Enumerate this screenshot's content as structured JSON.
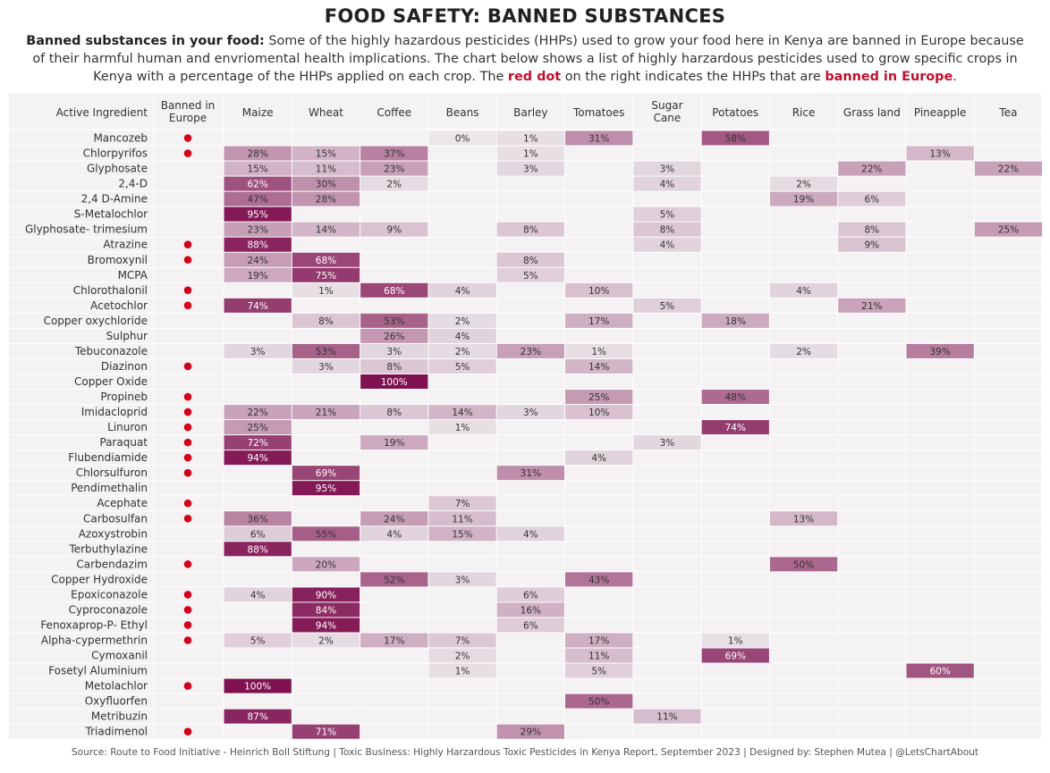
{
  "header": {
    "title": "FOOD SAFETY: BANNED SUBSTANCES",
    "subtitle_lead": "Banned substances in your food:",
    "subtitle_body_1": " Some of the highly hazardous pesticides (HHPs) used to grow your food here in Kenya are banned in Europe because of their harmful human and envriomental health implications. The chart below shows a list of highly harzardous pesticides used to grow specific crops in Kenya with a percentage of the HHPs applied on each crop. The ",
    "subtitle_red_1": "red dot",
    "subtitle_body_2": " on the right indicates the HHPs that are ",
    "subtitle_red_2": "banned in Europe",
    "subtitle_end": "."
  },
  "footer": {
    "source": "Source: Route to Food Initiative - Heinrich Boll Stiftung  |  Toxic Business: Highly Harzardous Toxic Pesticides in Kenya Report, September 2023  |  Designed by: Stephen Mutea  |  @LetsChartAbout"
  },
  "colors": {
    "banned_dot": "#d0021b",
    "cell_background": "#f4f2f3",
    "scale_low": "#ebe6ea",
    "scale_high": "#7f1150",
    "text_dark": "#333333",
    "text_light": "#ffffff"
  },
  "chart_data": {
    "type": "heatmap",
    "title": "FOOD SAFETY: BANNED SUBSTANCES",
    "row_header": "Active Ingredient",
    "banned_header": [
      "Banned in",
      "Europe"
    ],
    "columns": [
      [
        "Maize"
      ],
      [
        "Wheat"
      ],
      [
        "Coffee"
      ],
      [
        "Beans"
      ],
      [
        "Barley"
      ],
      [
        "Tomatoes"
      ],
      [
        "Sugar",
        "Cane"
      ],
      [
        "Potatoes"
      ],
      [
        "Rice"
      ],
      [
        "Grass land"
      ],
      [
        "Pineapple"
      ],
      [
        "Tea"
      ]
    ],
    "value_suffix": "%",
    "rows": [
      {
        "name": "Mancozeb",
        "banned": true,
        "values": [
          null,
          null,
          null,
          0,
          1,
          31,
          null,
          58,
          null,
          null,
          null,
          null
        ]
      },
      {
        "name": "Chlorpyrifos",
        "banned": true,
        "values": [
          28,
          15,
          37,
          null,
          1,
          null,
          null,
          null,
          null,
          null,
          13,
          null
        ]
      },
      {
        "name": "Glyphosate",
        "banned": false,
        "values": [
          15,
          11,
          23,
          null,
          3,
          null,
          3,
          null,
          null,
          22,
          null,
          22
        ]
      },
      {
        "name": "2,4-D",
        "banned": false,
        "values": [
          62,
          30,
          2,
          null,
          null,
          null,
          4,
          null,
          2,
          null,
          null,
          null
        ]
      },
      {
        "name": "2,4 D-Amine",
        "banned": false,
        "values": [
          47,
          28,
          null,
          null,
          null,
          null,
          null,
          null,
          19,
          6,
          null,
          null
        ]
      },
      {
        "name": "S-Metalochlor",
        "banned": false,
        "values": [
          95,
          null,
          null,
          null,
          null,
          null,
          5,
          null,
          null,
          null,
          null,
          null
        ]
      },
      {
        "name": "Glyphosate- trimesium",
        "banned": false,
        "values": [
          23,
          14,
          9,
          null,
          8,
          null,
          8,
          null,
          null,
          8,
          null,
          25
        ]
      },
      {
        "name": "Atrazine",
        "banned": true,
        "values": [
          88,
          null,
          null,
          null,
          null,
          null,
          4,
          null,
          null,
          9,
          null,
          null
        ]
      },
      {
        "name": "Bromoxynil",
        "banned": true,
        "values": [
          24,
          68,
          null,
          null,
          8,
          null,
          null,
          null,
          null,
          null,
          null,
          null
        ]
      },
      {
        "name": "MCPA",
        "banned": false,
        "values": [
          19,
          75,
          null,
          null,
          5,
          null,
          null,
          null,
          null,
          null,
          null,
          null
        ]
      },
      {
        "name": "Chlorothalonil",
        "banned": true,
        "values": [
          null,
          1,
          68,
          4,
          null,
          10,
          null,
          null,
          4,
          null,
          null,
          null
        ]
      },
      {
        "name": "Acetochlor",
        "banned": true,
        "values": [
          74,
          null,
          null,
          null,
          null,
          null,
          5,
          null,
          null,
          21,
          null,
          null
        ]
      },
      {
        "name": "Copper oxychloride",
        "banned": false,
        "values": [
          null,
          8,
          53,
          2,
          null,
          17,
          null,
          18,
          null,
          null,
          null,
          null
        ]
      },
      {
        "name": "Sulphur",
        "banned": false,
        "values": [
          null,
          null,
          26,
          4,
          null,
          null,
          null,
          null,
          null,
          null,
          null,
          null
        ]
      },
      {
        "name": "Tebuconazole",
        "banned": false,
        "values": [
          3,
          53,
          3,
          2,
          23,
          1,
          null,
          null,
          2,
          null,
          39,
          null
        ]
      },
      {
        "name": "Diazinon",
        "banned": true,
        "values": [
          null,
          3,
          8,
          5,
          null,
          14,
          null,
          null,
          null,
          null,
          null,
          null
        ]
      },
      {
        "name": "Copper Oxide",
        "banned": false,
        "values": [
          null,
          null,
          100,
          null,
          null,
          null,
          null,
          null,
          null,
          null,
          null,
          null
        ]
      },
      {
        "name": "Propineb",
        "banned": true,
        "values": [
          null,
          null,
          null,
          null,
          null,
          25,
          null,
          48,
          null,
          null,
          null,
          null
        ]
      },
      {
        "name": "Imidacloprid",
        "banned": true,
        "values": [
          22,
          21,
          8,
          14,
          3,
          10,
          null,
          null,
          null,
          null,
          null,
          null
        ]
      },
      {
        "name": "Linuron",
        "banned": true,
        "values": [
          25,
          null,
          null,
          1,
          null,
          null,
          null,
          74,
          null,
          null,
          null,
          null
        ]
      },
      {
        "name": "Paraquat",
        "banned": true,
        "values": [
          72,
          null,
          19,
          null,
          null,
          null,
          3,
          null,
          null,
          null,
          null,
          null
        ]
      },
      {
        "name": "Flubendiamide",
        "banned": true,
        "values": [
          94,
          null,
          null,
          null,
          null,
          4,
          null,
          null,
          null,
          null,
          null,
          null
        ]
      },
      {
        "name": "Chlorsulfuron",
        "banned": true,
        "values": [
          null,
          69,
          null,
          null,
          31,
          null,
          null,
          null,
          null,
          null,
          null,
          null
        ]
      },
      {
        "name": "Pendimethalin",
        "banned": false,
        "values": [
          null,
          95,
          null,
          null,
          null,
          null,
          null,
          null,
          null,
          null,
          null,
          null
        ]
      },
      {
        "name": "Acephate",
        "banned": true,
        "values": [
          null,
          null,
          null,
          7,
          null,
          null,
          null,
          null,
          null,
          null,
          null,
          null
        ]
      },
      {
        "name": "Carbosulfan",
        "banned": true,
        "values": [
          36,
          null,
          24,
          11,
          null,
          null,
          null,
          null,
          13,
          null,
          null,
          null
        ]
      },
      {
        "name": "Azoxystrobin",
        "banned": false,
        "values": [
          6,
          55,
          4,
          15,
          4,
          null,
          null,
          null,
          null,
          null,
          null,
          null
        ]
      },
      {
        "name": "Terbuthylazine",
        "banned": false,
        "values": [
          88,
          null,
          null,
          null,
          null,
          null,
          null,
          null,
          null,
          null,
          null,
          null
        ]
      },
      {
        "name": "Carbendazim",
        "banned": true,
        "values": [
          null,
          20,
          null,
          null,
          null,
          null,
          null,
          null,
          50,
          null,
          null,
          null
        ]
      },
      {
        "name": "Copper Hydroxide",
        "banned": false,
        "values": [
          null,
          null,
          52,
          3,
          null,
          43,
          null,
          null,
          null,
          null,
          null,
          null
        ]
      },
      {
        "name": "Epoxiconazole",
        "banned": true,
        "values": [
          4,
          90,
          null,
          null,
          6,
          null,
          null,
          null,
          null,
          null,
          null,
          null
        ]
      },
      {
        "name": "Cyproconazole",
        "banned": true,
        "values": [
          null,
          84,
          null,
          null,
          16,
          null,
          null,
          null,
          null,
          null,
          null,
          null
        ]
      },
      {
        "name": "Fenoxaprop-P- Ethyl",
        "banned": true,
        "values": [
          null,
          94,
          null,
          null,
          6,
          null,
          null,
          null,
          null,
          null,
          null,
          null
        ]
      },
      {
        "name": "Alpha-cypermethrin",
        "banned": true,
        "values": [
          5,
          2,
          17,
          7,
          null,
          17,
          null,
          1,
          null,
          null,
          null,
          null
        ]
      },
      {
        "name": "Cymoxanil",
        "banned": false,
        "values": [
          null,
          null,
          null,
          2,
          null,
          11,
          null,
          69,
          null,
          null,
          null,
          null
        ]
      },
      {
        "name": "Fosetyl Aluminium",
        "banned": false,
        "values": [
          null,
          null,
          null,
          1,
          null,
          5,
          null,
          null,
          null,
          null,
          60,
          null
        ]
      },
      {
        "name": "Metolachlor",
        "banned": true,
        "values": [
          100,
          null,
          null,
          null,
          null,
          null,
          null,
          null,
          null,
          null,
          null,
          null
        ]
      },
      {
        "name": "Oxyfluorfen",
        "banned": false,
        "values": [
          null,
          null,
          null,
          null,
          null,
          50,
          null,
          null,
          null,
          null,
          null,
          null
        ]
      },
      {
        "name": "Metribuzin",
        "banned": false,
        "values": [
          87,
          null,
          null,
          null,
          null,
          null,
          11,
          null,
          null,
          null,
          null,
          null
        ]
      },
      {
        "name": "Triadimenol",
        "banned": true,
        "values": [
          null,
          71,
          null,
          null,
          29,
          null,
          null,
          null,
          null,
          null,
          null,
          null
        ]
      }
    ]
  }
}
